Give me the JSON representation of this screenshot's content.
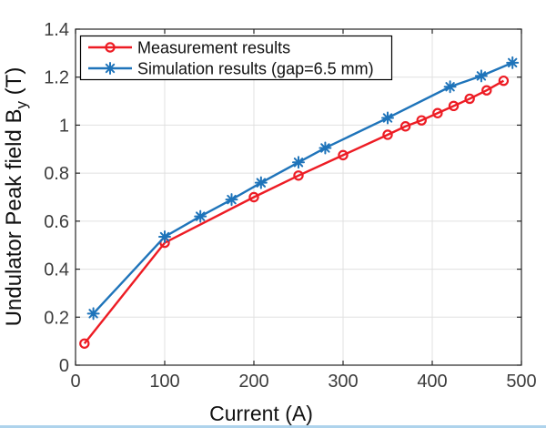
{
  "window": {
    "background": "#ffffff",
    "bottom_strip_color": "#aed3ec"
  },
  "chart_data": {
    "type": "line",
    "title": "",
    "xlabel": "Current (A)",
    "ylabel_main": "Undulator Peak field B",
    "ylabel_sub": "y",
    "ylabel_unit": " (T)",
    "xlim": [
      0,
      500
    ],
    "ylim": [
      0,
      1.4
    ],
    "xticks": [
      0,
      100,
      200,
      300,
      400,
      500
    ],
    "xtick_labels": [
      "0",
      "100",
      "200",
      "300",
      "400",
      "500"
    ],
    "yticks": [
      0,
      0.2,
      0.4,
      0.6,
      0.8,
      1.0,
      1.2,
      1.4
    ],
    "ytick_labels": [
      "0",
      "0.2",
      "0.4",
      "0.6",
      "0.8",
      "1",
      "1.2",
      "1.4"
    ],
    "grid": true,
    "grid_color": "#e0e0e0",
    "axis_color": "#252525",
    "tick_label_color": "#3c3c3c",
    "label_color": "#111111",
    "legend": {
      "position": "top-left",
      "background": "#ffffff",
      "border_color": "#000000"
    },
    "series": [
      {
        "name": "Measurement results",
        "color": "#ed1c24",
        "marker": "circle",
        "x": [
          10,
          100,
          200,
          250,
          300,
          350,
          370,
          388,
          406,
          424,
          442,
          461,
          480
        ],
        "y": [
          0.09,
          0.51,
          0.7,
          0.79,
          0.875,
          0.96,
          0.995,
          1.02,
          1.05,
          1.08,
          1.11,
          1.145,
          1.185
        ]
      },
      {
        "name": "Simulation results (gap=6.5 mm)",
        "color": "#1f74ba",
        "marker": "asterisk",
        "x": [
          20,
          100,
          140,
          175,
          208,
          250,
          280,
          350,
          420,
          455,
          490
        ],
        "y": [
          0.215,
          0.535,
          0.62,
          0.69,
          0.76,
          0.845,
          0.905,
          1.03,
          1.16,
          1.205,
          1.26
        ]
      }
    ]
  }
}
